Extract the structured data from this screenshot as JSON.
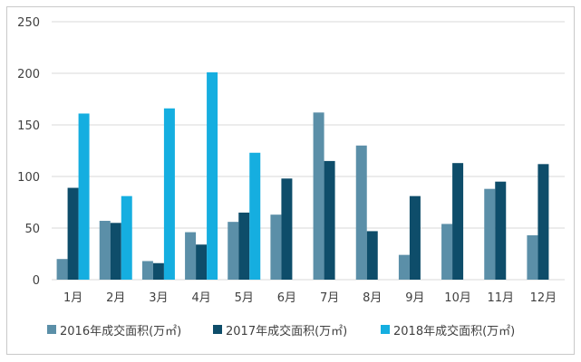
{
  "chart_data": {
    "type": "bar",
    "categories": [
      "1月",
      "2月",
      "3月",
      "4月",
      "5月",
      "6月",
      "7月",
      "8月",
      "9月",
      "10月",
      "11月",
      "12月"
    ],
    "series": [
      {
        "name": "2016年成交面积(万㎡)",
        "color": "#5b8fa8",
        "values": [
          20,
          57,
          18,
          46,
          56,
          63,
          162,
          130,
          24,
          54,
          88,
          43
        ]
      },
      {
        "name": "2017年成交面积(万㎡)",
        "color": "#0e4d6a",
        "values": [
          89,
          55,
          16,
          34,
          65,
          98,
          115,
          47,
          81,
          113,
          95,
          112
        ]
      },
      {
        "name": "2018年成交面积(万㎡)",
        "color": "#15aee0",
        "values": [
          161,
          81,
          166,
          201,
          123,
          null,
          null,
          null,
          null,
          null,
          null,
          null
        ]
      }
    ],
    "yticks": [
      0,
      50,
      100,
      150,
      200,
      250
    ],
    "ylim": [
      0,
      250
    ],
    "grid": true,
    "legend_position": "bottom"
  }
}
